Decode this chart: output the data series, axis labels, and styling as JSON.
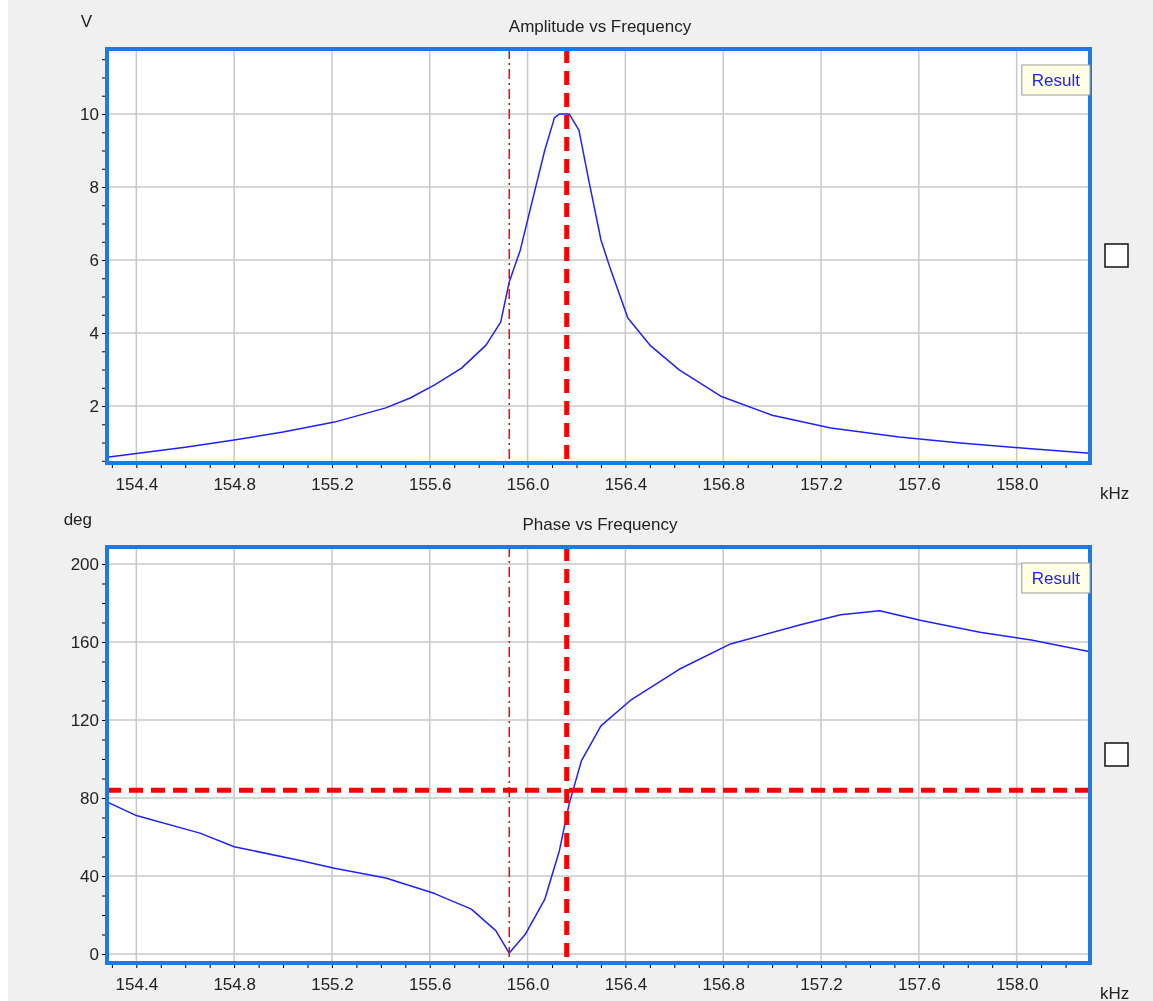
{
  "chart_data": [
    {
      "type": "line",
      "title": "Amplitude  vs  Frequency",
      "xlabel": "kHz",
      "ylabel": "V",
      "legend": "top right",
      "grid": true,
      "marker": "none",
      "line_style": "solid",
      "xlim": [
        154.28,
        158.3
      ],
      "ylim": [
        0.44,
        11.78
      ],
      "xticks": [
        {
          "value": 154.3,
          "label": null
        },
        154.4,
        {
          "value": 154.5,
          "label": null
        },
        {
          "value": 154.6,
          "label": null
        },
        {
          "value": 154.7,
          "label": null
        },
        154.8,
        {
          "value": 154.9,
          "label": null
        },
        {
          "value": 155.0,
          "label": null
        },
        {
          "value": 155.1,
          "label": null
        },
        155.2,
        {
          "value": 155.3,
          "label": null
        },
        {
          "value": 155.4,
          "label": null
        },
        {
          "value": 155.5,
          "label": null
        },
        155.6,
        {
          "value": 155.7,
          "label": null
        },
        {
          "value": 155.8,
          "label": null
        },
        {
          "value": 155.9,
          "label": null
        },
        {
          "value": 156.0,
          "label": "156.0"
        },
        {
          "value": 156.1,
          "label": null
        },
        {
          "value": 156.2,
          "label": null
        },
        {
          "value": 156.3,
          "label": null
        },
        156.4,
        {
          "value": 156.5,
          "label": null
        },
        {
          "value": 156.6,
          "label": null
        },
        {
          "value": 156.7,
          "label": null
        },
        156.8,
        {
          "value": 156.9,
          "label": null
        },
        {
          "value": 157.0,
          "label": null
        },
        {
          "value": 157.1,
          "label": null
        },
        157.2,
        {
          "value": 157.3,
          "label": null
        },
        {
          "value": 157.4,
          "label": null
        },
        {
          "value": 157.5,
          "label": null
        },
        157.6,
        {
          "value": 157.7,
          "label": null
        },
        {
          "value": 157.8,
          "label": null
        },
        {
          "value": 157.9,
          "label": null
        },
        {
          "value": 158.0,
          "label": "158.0"
        },
        {
          "value": 158.1,
          "label": null
        },
        {
          "value": 158.2,
          "label": null
        }
      ],
      "yticks": [
        {
          "value": 0.5,
          "label": null
        },
        {
          "value": 1,
          "label": null
        },
        {
          "value": 1.5,
          "label": null
        },
        2,
        {
          "value": 2.5,
          "label": null
        },
        {
          "value": 3,
          "label": null
        },
        {
          "value": 3.5,
          "label": null
        },
        4,
        {
          "value": 4.5,
          "label": null
        },
        {
          "value": 5,
          "label": null
        },
        {
          "value": 5.5,
          "label": null
        },
        6,
        {
          "value": 6.5,
          "label": null
        },
        {
          "value": 7,
          "label": null
        },
        {
          "value": 7.5,
          "label": null
        },
        8,
        {
          "value": 8.5,
          "label": null
        },
        {
          "value": 9,
          "label": null
        },
        {
          "value": 9.5,
          "label": null
        },
        10,
        {
          "value": 10.5,
          "label": null
        },
        {
          "value": 11,
          "label": null
        },
        {
          "value": 11.5,
          "label": null
        }
      ],
      "ref_lines": [
        {
          "axis": "x",
          "value": 155.925,
          "color": "#ff0000",
          "line_style": "dashdot"
        },
        {
          "axis": "x",
          "value": 156.16,
          "color": "#ff0000",
          "line_style": "dashed"
        }
      ],
      "series": [
        {
          "name": "Result",
          "color": "#2020ff",
          "x": [
            154.28,
            154.4,
            154.6,
            154.8,
            155.0,
            155.21,
            155.42,
            155.52,
            155.62,
            155.73,
            155.83,
            155.89,
            155.925,
            155.97,
            156.02,
            156.07,
            156.11,
            156.13,
            156.17,
            156.21,
            156.25,
            156.3,
            156.34,
            156.41,
            156.5,
            156.62,
            156.79,
            157.0,
            157.24,
            157.52,
            157.77,
            158.02,
            158.3
          ],
          "values": [
            0.6,
            0.7,
            0.87,
            1.07,
            1.29,
            1.56,
            1.95,
            2.22,
            2.58,
            3.04,
            3.67,
            4.3,
            5.4,
            6.27,
            7.64,
            9.0,
            9.9,
            10.0,
            10.0,
            9.56,
            8.19,
            6.55,
            5.73,
            4.41,
            3.67,
            2.99,
            2.27,
            1.75,
            1.4,
            1.15,
            0.99,
            0.85,
            0.71
          ]
        }
      ]
    },
    {
      "type": "line",
      "title": "Phase  vs  Frequency",
      "xlabel": "kHz",
      "ylabel": "deg",
      "legend": "top right",
      "grid": true,
      "marker": "none",
      "line_style": "solid",
      "xlim": [
        154.28,
        158.3
      ],
      "ylim": [
        -4.6,
        208.7
      ],
      "xticks": [
        {
          "value": 154.3,
          "label": null
        },
        154.4,
        {
          "value": 154.5,
          "label": null
        },
        {
          "value": 154.6,
          "label": null
        },
        {
          "value": 154.7,
          "label": null
        },
        154.8,
        {
          "value": 154.9,
          "label": null
        },
        {
          "value": 155.0,
          "label": null
        },
        {
          "value": 155.1,
          "label": null
        },
        155.2,
        {
          "value": 155.3,
          "label": null
        },
        {
          "value": 155.4,
          "label": null
        },
        {
          "value": 155.5,
          "label": null
        },
        155.6,
        {
          "value": 155.7,
          "label": null
        },
        {
          "value": 155.8,
          "label": null
        },
        {
          "value": 155.9,
          "label": null
        },
        {
          "value": 156.0,
          "label": "156.0"
        },
        {
          "value": 156.1,
          "label": null
        },
        {
          "value": 156.2,
          "label": null
        },
        {
          "value": 156.3,
          "label": null
        },
        156.4,
        {
          "value": 156.5,
          "label": null
        },
        {
          "value": 156.6,
          "label": null
        },
        {
          "value": 156.7,
          "label": null
        },
        156.8,
        {
          "value": 156.9,
          "label": null
        },
        {
          "value": 157.0,
          "label": null
        },
        {
          "value": 157.1,
          "label": null
        },
        157.2,
        {
          "value": 157.3,
          "label": null
        },
        {
          "value": 157.4,
          "label": null
        },
        {
          "value": 157.5,
          "label": null
        },
        157.6,
        {
          "value": 157.7,
          "label": null
        },
        {
          "value": 157.8,
          "label": null
        },
        {
          "value": 157.9,
          "label": null
        },
        {
          "value": 158.0,
          "label": "158.0"
        },
        {
          "value": 158.1,
          "label": null
        },
        {
          "value": 158.2,
          "label": null
        }
      ],
      "yticks": [
        0,
        {
          "value": 10,
          "label": null
        },
        {
          "value": 20,
          "label": null
        },
        {
          "value": 30,
          "label": null
        },
        40,
        {
          "value": 50,
          "label": null
        },
        {
          "value": 60,
          "label": null
        },
        {
          "value": 70,
          "label": null
        },
        80,
        {
          "value": 90,
          "label": null
        },
        {
          "value": 100,
          "label": null
        },
        {
          "value": 110,
          "label": null
        },
        120,
        {
          "value": 130,
          "label": null
        },
        {
          "value": 140,
          "label": null
        },
        {
          "value": 150,
          "label": null
        },
        160,
        {
          "value": 170,
          "label": null
        },
        {
          "value": 180,
          "label": null
        },
        {
          "value": 190,
          "label": null
        },
        200
      ],
      "ref_lines": [
        {
          "axis": "x",
          "value": 155.925,
          "color": "#ff0000",
          "line_style": "dashdot"
        },
        {
          "axis": "x",
          "value": 156.16,
          "color": "#ff0000",
          "line_style": "dashed"
        },
        {
          "axis": "y",
          "value": 84,
          "color": "#ff0000",
          "line_style": "dashed"
        }
      ],
      "series": [
        {
          "name": "Result",
          "color": "#2020ff",
          "x": [
            154.28,
            154.4,
            154.66,
            154.8,
            155.07,
            155.21,
            155.42,
            155.62,
            155.77,
            155.87,
            155.925,
            155.99,
            156.07,
            156.13,
            156.17,
            156.22,
            156.3,
            156.42,
            156.62,
            156.83,
            157.12,
            157.28,
            157.44,
            157.61,
            157.85,
            158.06,
            158.3
          ],
          "values": [
            78,
            71,
            62,
            55,
            48,
            44,
            39,
            31,
            23,
            12,
            0.5,
            10,
            28,
            53,
            77,
            99,
            117,
            130,
            146,
            159,
            169,
            174,
            176,
            171,
            165,
            161,
            155
          ]
        }
      ]
    }
  ]
}
